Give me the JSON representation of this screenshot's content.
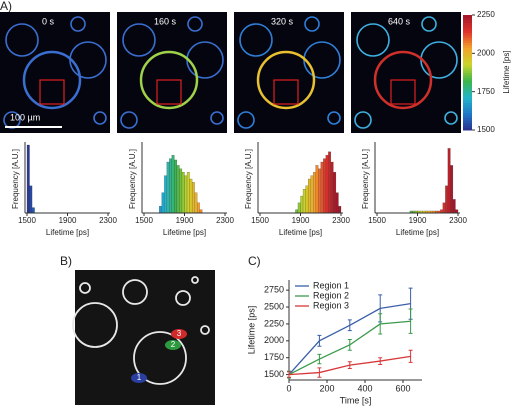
{
  "panel_a": {
    "label": "A)",
    "times": [
      "0 s",
      "160 s",
      "320 s",
      "640 s"
    ],
    "scale_bar": "100 µm"
  },
  "colorbar": {
    "title": "Lifetime [ps]",
    "lim": [
      1500,
      2250
    ],
    "ticks": [
      1500,
      1750,
      2000,
      2250
    ],
    "colors": [
      "#2b2f8f",
      "#1f78c8",
      "#22b5c9",
      "#3cb54a",
      "#c9d62a",
      "#f2a32a",
      "#e0332b",
      "#a3182a"
    ]
  },
  "panel_b": {
    "label": "B)",
    "regions": [
      "1",
      "2",
      "3"
    ]
  },
  "panel_c": {
    "label": "C)"
  },
  "chart_data": [
    {
      "type": "histogram",
      "x_label": "Lifetime [ps]",
      "y_label": "Frequency [A.U.]",
      "bins": [
        1500,
        1525,
        1550,
        1575,
        1600,
        1625,
        1650,
        1675,
        1700,
        1725,
        1750,
        1775,
        1800,
        1825,
        1850,
        1875,
        1900,
        1925,
        1950,
        1975,
        2000,
        2025,
        2050,
        2075,
        2100,
        2125,
        2150,
        2175,
        2200,
        2225,
        2250,
        2275,
        2300
      ],
      "values": [
        100,
        40,
        8,
        0,
        0,
        0,
        0,
        0,
        0,
        0,
        0,
        0,
        0,
        0,
        0,
        0,
        0,
        0,
        0,
        0,
        0,
        0,
        0,
        0,
        0,
        0,
        0,
        0,
        0,
        0,
        0,
        0
      ],
      "xlim": [
        1500,
        2300
      ],
      "xticks": [
        1500,
        1900,
        2300
      ],
      "ylim": [
        0,
        100
      ]
    },
    {
      "type": "histogram",
      "x_label": "Lifetime [ps]",
      "y_label": "Frequency [A.U.]",
      "bins": [
        1500,
        1525,
        1550,
        1575,
        1600,
        1625,
        1650,
        1675,
        1700,
        1725,
        1750,
        1775,
        1800,
        1825,
        1850,
        1875,
        1900,
        1925,
        1950,
        1975,
        2000,
        2025,
        2050,
        2075,
        2100,
        2125,
        2150,
        2175,
        2200,
        2225,
        2250,
        2275,
        2300
      ],
      "values": [
        0,
        0,
        0,
        0,
        0,
        0,
        10,
        30,
        55,
        75,
        80,
        85,
        78,
        70,
        65,
        60,
        55,
        60,
        50,
        45,
        30,
        15,
        5,
        0,
        0,
        0,
        0,
        0,
        0,
        0,
        0,
        0
      ],
      "xlim": [
        1500,
        2300
      ],
      "xticks": [
        1500,
        1900,
        2300
      ],
      "ylim": [
        0,
        100
      ]
    },
    {
      "type": "histogram",
      "x_label": "Lifetime [ps]",
      "y_label": "Frequency [A.U.]",
      "bins": [
        1500,
        1525,
        1550,
        1575,
        1600,
        1625,
        1650,
        1675,
        1700,
        1725,
        1750,
        1775,
        1800,
        1825,
        1850,
        1875,
        1900,
        1925,
        1950,
        1975,
        2000,
        2025,
        2050,
        2075,
        2100,
        2125,
        2150,
        2175,
        2200,
        2225,
        2250,
        2275,
        2300
      ],
      "values": [
        0,
        0,
        0,
        0,
        0,
        0,
        0,
        0,
        0,
        0,
        0,
        0,
        0,
        0,
        5,
        15,
        25,
        35,
        40,
        50,
        55,
        60,
        70,
        65,
        75,
        80,
        85,
        90,
        75,
        60,
        30,
        10
      ],
      "xlim": [
        1500,
        2300
      ],
      "xticks": [
        1500,
        1900,
        2300
      ],
      "ylim": [
        0,
        100
      ]
    },
    {
      "type": "histogram",
      "x_label": "Lifetime [ps]",
      "y_label": "Frequency [A.U.]",
      "bins": [
        1500,
        1525,
        1550,
        1575,
        1600,
        1625,
        1650,
        1675,
        1700,
        1725,
        1750,
        1775,
        1800,
        1825,
        1850,
        1875,
        1900,
        1925,
        1950,
        1975,
        2000,
        2025,
        2050,
        2075,
        2100,
        2125,
        2150,
        2175,
        2200,
        2225,
        2250,
        2275,
        2300
      ],
      "values": [
        0,
        0,
        0,
        0,
        0,
        0,
        0,
        0,
        0,
        0,
        0,
        0,
        0,
        3,
        3,
        3,
        3,
        3,
        3,
        3,
        3,
        3,
        3,
        3,
        3,
        5,
        15,
        40,
        95,
        70,
        20,
        5
      ],
      "xlim": [
        1500,
        2300
      ],
      "xticks": [
        1500,
        1900,
        2300
      ],
      "ylim": [
        0,
        100
      ]
    },
    {
      "type": "line",
      "x_label": "Time [s]",
      "y_label": "Lifetime [ps]",
      "x": [
        0,
        160,
        320,
        480,
        640
      ],
      "series": [
        {
          "name": "Region 1",
          "color": "#3a5fa8",
          "values": [
            1500,
            2000,
            2230,
            2480,
            2550
          ],
          "errors": [
            50,
            80,
            80,
            200,
            230
          ]
        },
        {
          "name": "Region 2",
          "color": "#3a9a4a",
          "values": [
            1500,
            1730,
            1940,
            2250,
            2290
          ],
          "errors": [
            50,
            70,
            80,
            150,
            180
          ]
        },
        {
          "name": "Region 3",
          "color": "#d8383a",
          "values": [
            1500,
            1530,
            1640,
            1700,
            1770
          ],
          "errors": [
            40,
            70,
            50,
            50,
            90
          ]
        }
      ],
      "xlim": [
        0,
        700
      ],
      "xticks": [
        0,
        200,
        400,
        600
      ],
      "ylim": [
        1420,
        2900
      ],
      "yticks": [
        1500,
        1750,
        2000,
        2250,
        2500,
        2750
      ],
      "legend": "upper-left"
    }
  ]
}
